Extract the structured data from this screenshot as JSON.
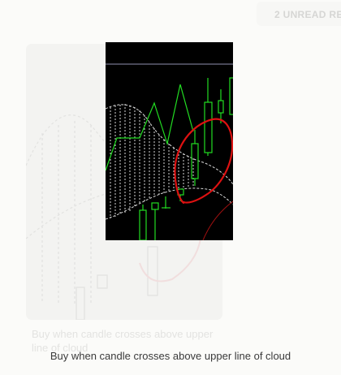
{
  "notification": {
    "unread_label": "2 UNREAD RE"
  },
  "post": {
    "caption": "Buy when candle crosses above upper line of cloud",
    "ghost_caption": "Buy when candle crosses above upper line of cloud"
  },
  "colors": {
    "chart_background": "#000000",
    "candle": "#22dd22",
    "cloud_line": "#dcdcdc",
    "annotation": "#dd1111",
    "page_background": "#fbfbf9"
  },
  "icons": {
    "annotation_mark": "hand-drawn-circle"
  }
}
